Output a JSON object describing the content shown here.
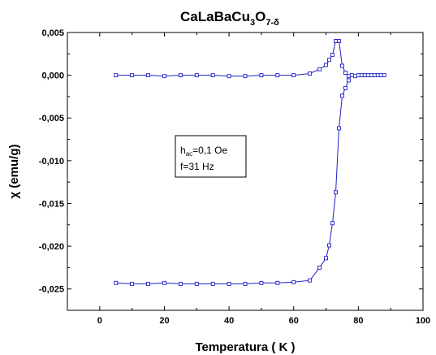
{
  "chart_data": {
    "type": "scatter",
    "title": {
      "main": "CaLaBaCu",
      "sub1": "3",
      "mid": "O",
      "sub2": "7-δ"
    },
    "xlabel": "Temperatura ( K )",
    "ylabel": "χ (emu/g)",
    "xlim": [
      -10,
      100
    ],
    "ylim": [
      -0.0275,
      0.005
    ],
    "xticks": [
      0,
      20,
      40,
      60,
      80,
      100
    ],
    "yticks": [
      0.005,
      0.0,
      -0.005,
      -0.01,
      -0.015,
      -0.02,
      -0.025
    ],
    "ytick_labels": [
      "0,005",
      "0,000",
      "-0,005",
      "-0,010",
      "-0,015",
      "-0,020",
      "-0,025"
    ],
    "xtick_labels": [
      "0",
      "20",
      "40",
      "60",
      "80",
      "100"
    ],
    "grid": false,
    "marker": "open-square",
    "color": "#1f1fc8",
    "annotation": {
      "line1_main": "h",
      "line1_sub": "ac",
      "line1_rest": "=0,1 Oe",
      "line2": "f=31 Hz"
    },
    "series": [
      {
        "x": [
          5,
          10,
          15,
          20,
          25,
          30,
          35,
          40,
          45,
          50,
          55,
          60,
          65,
          68,
          70,
          71,
          72,
          73,
          74,
          75,
          76,
          77,
          78,
          79,
          80,
          81,
          82,
          83,
          84,
          85,
          86,
          87,
          88
        ],
        "y": [
          0.0,
          0.0,
          0.0,
          -0.0001,
          0.0,
          0.0,
          0.0,
          -0.0001,
          -0.0001,
          0.0,
          0.0,
          0.0,
          0.0002,
          0.0007,
          0.0012,
          0.0018,
          0.0024,
          0.004,
          0.004,
          0.0011,
          0.0003,
          -0.0001,
          0.0,
          -0.0001,
          0.0,
          0.0,
          0.0,
          0.0,
          0.0,
          0.0,
          0.0,
          0.0,
          0.0
        ]
      },
      {
        "x": [
          5,
          10,
          15,
          20,
          25,
          30,
          35,
          40,
          45,
          50,
          55,
          60,
          65,
          68,
          70,
          71,
          72,
          73,
          74,
          75,
          76,
          77
        ],
        "y": [
          -0.0243,
          -0.0244,
          -0.0244,
          -0.0243,
          -0.0244,
          -0.0244,
          -0.0244,
          -0.0244,
          -0.0244,
          -0.0243,
          -0.0243,
          -0.0242,
          -0.024,
          -0.0225,
          -0.0214,
          -0.0199,
          -0.0173,
          -0.0137,
          -0.0062,
          -0.0024,
          -0.0015,
          -0.0006
        ]
      }
    ]
  }
}
